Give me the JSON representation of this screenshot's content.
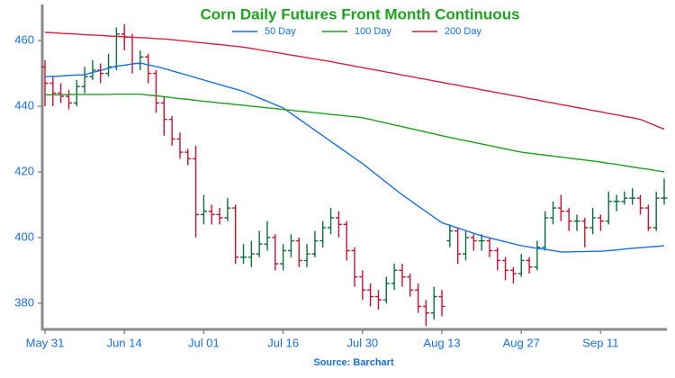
{
  "chart_data": {
    "type": "ohlc",
    "title": "Corn Daily Futures Front Month Continuous",
    "source": "Source: Barchart",
    "legend": "top",
    "up_color": "#0b6b3a",
    "down_color": "#c8102e",
    "categories": [
      "May 31",
      null,
      null,
      null,
      null,
      null,
      null,
      null,
      null,
      null,
      "Jun 14",
      null,
      null,
      null,
      null,
      null,
      null,
      null,
      null,
      null,
      "Jul 01",
      null,
      null,
      null,
      null,
      null,
      null,
      null,
      null,
      null,
      "Jul 16",
      null,
      null,
      null,
      null,
      null,
      null,
      null,
      null,
      null,
      "Jul 30",
      null,
      null,
      null,
      null,
      null,
      null,
      null,
      null,
      null,
      "Aug 13",
      null,
      null,
      null,
      null,
      null,
      null,
      null,
      null,
      null,
      "Aug 27",
      null,
      null,
      null,
      null,
      null,
      null,
      null,
      null,
      null,
      "Sep 11",
      null,
      null,
      null,
      null,
      null,
      null,
      null,
      null
    ],
    "open": [
      452,
      447,
      444,
      443,
      441,
      446,
      449,
      451,
      450,
      452,
      462,
      461,
      453,
      455,
      450,
      441,
      436,
      430,
      426,
      424,
      407,
      408,
      407,
      406,
      409,
      394,
      394,
      395,
      398,
      400,
      392,
      396,
      399,
      393,
      395,
      399,
      403,
      406,
      404,
      396,
      388,
      384,
      382,
      381,
      386,
      390,
      388,
      384,
      379,
      377,
      382,
      399,
      402,
      395,
      400,
      399,
      399,
      396,
      393,
      390,
      389,
      393,
      391,
      397,
      406,
      409,
      408,
      405,
      405,
      403,
      406,
      405,
      411,
      411,
      412,
      412,
      409,
      403,
      412
    ],
    "high": [
      454,
      449,
      447,
      445,
      448,
      452,
      454,
      453,
      456,
      464,
      465,
      462,
      457,
      456,
      451,
      443,
      437,
      432,
      427,
      428,
      413,
      410,
      409,
      412,
      410,
      398,
      399,
      402,
      405,
      401,
      398,
      401,
      400,
      398,
      402,
      405,
      409,
      408,
      405,
      397,
      390,
      386,
      384,
      388,
      392,
      392,
      389,
      386,
      381,
      385,
      384,
      404,
      403,
      402,
      401,
      401,
      400,
      397,
      394,
      391,
      395,
      394,
      399,
      408,
      411,
      413,
      409,
      407,
      406,
      409,
      407,
      414,
      413,
      414,
      415,
      413,
      410,
      414,
      418
    ],
    "low": [
      440,
      440,
      441,
      439,
      440,
      444,
      448,
      447,
      449,
      451,
      457,
      450,
      451,
      447,
      438,
      431,
      428,
      424,
      422,
      400,
      404,
      404,
      404,
      405,
      392,
      392,
      391,
      394,
      396,
      390,
      390,
      394,
      391,
      391,
      394,
      397,
      401,
      400,
      393,
      385,
      381,
      379,
      378,
      380,
      384,
      385,
      382,
      377,
      373,
      375,
      376,
      397,
      392,
      393,
      396,
      396,
      394,
      390,
      387,
      386,
      388,
      389,
      390,
      396,
      404,
      405,
      402,
      402,
      397,
      401,
      402,
      404,
      408,
      410,
      410,
      407,
      402,
      402,
      410
    ],
    "close": [
      447,
      444,
      443,
      441,
      446,
      449,
      451,
      450,
      452,
      462,
      461,
      453,
      455,
      450,
      441,
      436,
      430,
      426,
      424,
      407,
      408,
      407,
      406,
      409,
      394,
      394,
      395,
      398,
      400,
      392,
      396,
      399,
      393,
      395,
      399,
      403,
      406,
      404,
      396,
      388,
      384,
      382,
      381,
      386,
      390,
      388,
      384,
      379,
      377,
      382,
      379,
      402,
      395,
      400,
      399,
      399,
      396,
      393,
      390,
      389,
      393,
      391,
      397,
      406,
      409,
      408,
      405,
      405,
      403,
      406,
      405,
      411,
      411,
      412,
      412,
      409,
      403,
      412,
      412
    ],
    "series": [
      {
        "name": "50 Day",
        "color": "#1a6fe0",
        "values": [
          449.0,
          449.1,
          449.2,
          449.4,
          449.5,
          449.6,
          450.3,
          450.9,
          451.6,
          452.2,
          452.5,
          452.9,
          453.2,
          452.6,
          452.1,
          451.5,
          450.8,
          450.1,
          449.4,
          448.7,
          448.0,
          447.3,
          446.6,
          445.9,
          445.2,
          444.5,
          443.5,
          442.5,
          441.5,
          440.5,
          439.5,
          437.8,
          436.1,
          434.4,
          432.7,
          431.0,
          429.3,
          427.6,
          425.9,
          424.2,
          422.5,
          420.6,
          418.7,
          416.8,
          414.9,
          413.0,
          411.3,
          409.6,
          407.9,
          406.2,
          404.5,
          403.7,
          402.9,
          402.1,
          401.3,
          400.5,
          399.9,
          399.3,
          398.7,
          398.1,
          397.5,
          397.1,
          396.7,
          396.4,
          396.0,
          395.6,
          395.6,
          395.7,
          395.7,
          395.8,
          395.8,
          396.0,
          396.2,
          396.5,
          396.7,
          396.9,
          397.1,
          397.3,
          397.5
        ]
      },
      {
        "name": "100 Day",
        "color": "#1e9e1e",
        "values": [
          443.5,
          443.5,
          443.5,
          443.6,
          443.6,
          443.6,
          443.6,
          443.6,
          443.6,
          443.7,
          443.7,
          443.7,
          443.7,
          443.4,
          443.2,
          442.9,
          442.6,
          442.3,
          442.1,
          441.8,
          441.5,
          441.3,
          441.0,
          440.8,
          440.5,
          440.3,
          440.0,
          439.8,
          439.5,
          439.3,
          439.0,
          438.8,
          438.5,
          438.3,
          438.0,
          437.8,
          437.5,
          437.3,
          437.0,
          436.8,
          436.5,
          436.0,
          435.4,
          434.9,
          434.3,
          433.8,
          433.2,
          432.7,
          432.1,
          431.6,
          431.0,
          430.5,
          430.0,
          429.5,
          429.0,
          428.5,
          428.0,
          427.5,
          427.0,
          426.5,
          426.0,
          425.7,
          425.4,
          425.1,
          424.8,
          424.5,
          424.2,
          423.9,
          423.6,
          423.3,
          423.0,
          422.6,
          422.3,
          421.9,
          421.5,
          421.1,
          420.8,
          420.4,
          420.0
        ]
      },
      {
        "name": "200 Day",
        "color": "#d0213f",
        "values": [
          462.5,
          462.4,
          462.2,
          462.1,
          462.0,
          461.8,
          461.7,
          461.6,
          461.4,
          461.3,
          461.2,
          461.0,
          460.9,
          460.8,
          460.6,
          460.5,
          460.3,
          460.0,
          459.8,
          459.5,
          459.3,
          459.0,
          458.8,
          458.5,
          458.3,
          458.0,
          457.6,
          457.2,
          456.8,
          456.4,
          456.0,
          455.6,
          455.2,
          454.8,
          454.4,
          454.0,
          453.6,
          453.1,
          452.7,
          452.2,
          451.8,
          451.3,
          450.9,
          450.4,
          450.0,
          449.5,
          449.1,
          448.6,
          448.2,
          447.7,
          447.3,
          446.8,
          446.4,
          445.9,
          445.5,
          445.0,
          444.6,
          444.1,
          443.7,
          443.2,
          442.8,
          442.3,
          441.9,
          441.4,
          441.0,
          440.5,
          440.1,
          439.6,
          439.2,
          438.7,
          438.3,
          437.8,
          437.4,
          436.9,
          436.5,
          436.0,
          435.0,
          434.0,
          433.0
        ]
      }
    ],
    "ylim": [
      372,
      471
    ],
    "yticks": [
      380,
      400,
      420,
      440,
      460
    ]
  }
}
